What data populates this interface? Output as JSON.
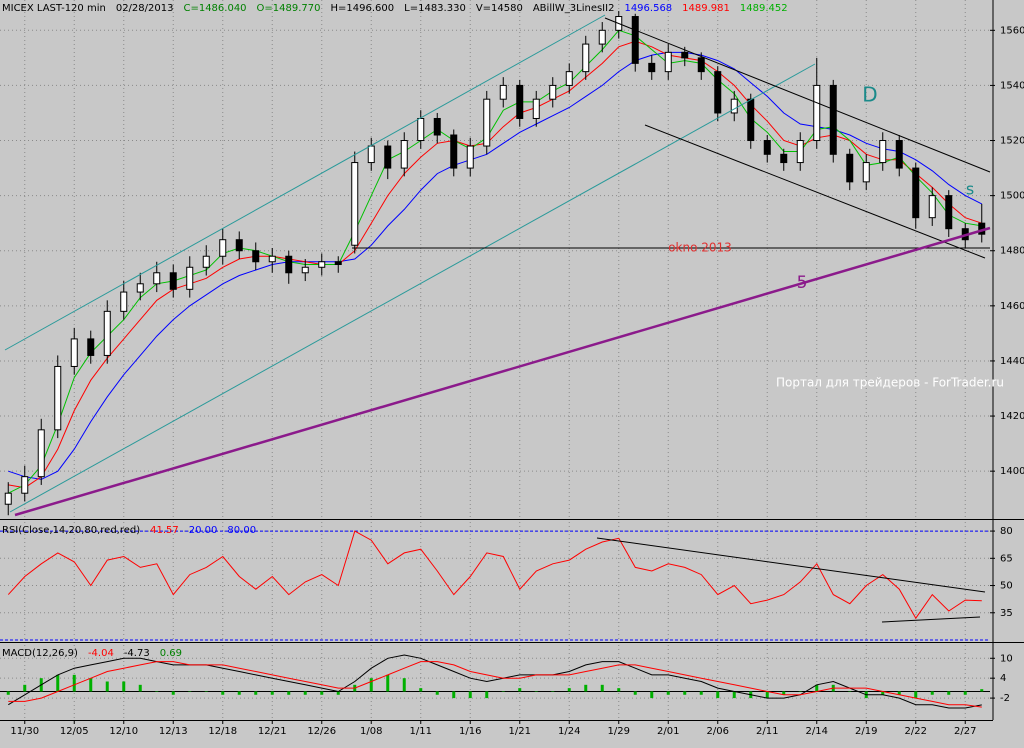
{
  "chart_data": [
    {
      "type": "candlestick",
      "header": [
        {
          "text": "MICEX LAST-120 min",
          "color": "#000000"
        },
        {
          "text": "02/28/2013",
          "color": "#000000"
        },
        {
          "text": "C=1486.040",
          "color": "#008000"
        },
        {
          "text": "O=1489.770",
          "color": "#008000"
        },
        {
          "text": "H=1496.600",
          "color": "#000000"
        },
        {
          "text": "L=1483.330",
          "color": "#000000"
        },
        {
          "text": "V=14580",
          "color": "#000000"
        },
        {
          "text": "ABillW_3LinesII2",
          "color": "#000000"
        },
        {
          "text": "1496.568",
          "color": "#0000ff"
        },
        {
          "text": "1489.981",
          "color": "#ff0000"
        },
        {
          "text": "1489.452",
          "color": "#00b000"
        }
      ],
      "categories": [
        null,
        "11/30",
        null,
        null,
        "12/05",
        null,
        null,
        "12/10",
        null,
        null,
        "12/13",
        null,
        null,
        "12/18",
        null,
        null,
        "12/21",
        null,
        null,
        "12/26",
        null,
        null,
        "1/08",
        null,
        null,
        "1/11",
        null,
        null,
        "1/16",
        null,
        null,
        "1/21",
        null,
        null,
        "1/24",
        null,
        null,
        "1/29",
        null,
        null,
        "2/01",
        null,
        null,
        "2/06",
        null,
        null,
        "2/11",
        null,
        null,
        "2/14",
        null,
        null,
        "2/19",
        null,
        null,
        "2/22",
        null,
        null,
        "2/27",
        null
      ],
      "open": [
        1388,
        1392,
        1398,
        1415,
        1438,
        1448,
        1442,
        1458,
        1465,
        1468,
        1472,
        1466,
        1474,
        1478,
        1484,
        1480,
        1476,
        1478,
        1472,
        1474,
        1476,
        1482,
        1512,
        1518,
        1510,
        1520,
        1528,
        1522,
        1510,
        1518,
        1535,
        1540,
        1528,
        1535,
        1540,
        1545,
        1555,
        1560,
        1565,
        1548,
        1545,
        1552,
        1550,
        1545,
        1530,
        1535,
        1520,
        1515,
        1512,
        1520,
        1540,
        1515,
        1505,
        1512,
        1520,
        1510,
        1492,
        1500,
        1488,
        1490
      ],
      "high": [
        1396,
        1402,
        1419,
        1442,
        1452,
        1451,
        1462,
        1469,
        1472,
        1476,
        1475,
        1478,
        1482,
        1488,
        1487,
        1483,
        1481,
        1480,
        1477,
        1479,
        1478,
        1516,
        1521,
        1520,
        1523,
        1531,
        1530,
        1524,
        1521,
        1538,
        1543,
        1542,
        1538,
        1543,
        1548,
        1558,
        1563,
        1567,
        1566,
        1551,
        1555,
        1554,
        1552,
        1547,
        1538,
        1537,
        1522,
        1517,
        1523,
        1550,
        1542,
        1517,
        1515,
        1523,
        1522,
        1512,
        1503,
        1502,
        1490,
        1497
      ],
      "low": [
        1384,
        1389,
        1395,
        1412,
        1435,
        1439,
        1439,
        1455,
        1462,
        1465,
        1463,
        1463,
        1471,
        1475,
        1477,
        1473,
        1472,
        1468,
        1469,
        1471,
        1472,
        1479,
        1509,
        1506,
        1507,
        1517,
        1519,
        1507,
        1507,
        1515,
        1532,
        1525,
        1525,
        1532,
        1537,
        1542,
        1552,
        1557,
        1545,
        1542,
        1542,
        1547,
        1542,
        1527,
        1527,
        1517,
        1512,
        1509,
        1509,
        1517,
        1512,
        1502,
        1502,
        1509,
        1507,
        1488,
        1489,
        1485,
        1481,
        1483
      ],
      "close": [
        1392,
        1398,
        1415,
        1438,
        1448,
        1442,
        1458,
        1465,
        1468,
        1472,
        1466,
        1474,
        1478,
        1484,
        1480,
        1476,
        1478,
        1472,
        1474,
        1476,
        1475,
        1512,
        1518,
        1510,
        1520,
        1528,
        1522,
        1510,
        1518,
        1535,
        1540,
        1528,
        1535,
        1540,
        1545,
        1555,
        1560,
        1565,
        1548,
        1545,
        1552,
        1550,
        1545,
        1530,
        1535,
        1520,
        1515,
        1512,
        1520,
        1540,
        1515,
        1505,
        1512,
        1520,
        1510,
        1492,
        1500,
        1488,
        1484,
        1486
      ],
      "series": [
        {
          "color": "#0000ff",
          "values": [
            1400,
            1398,
            1397,
            1400,
            1408,
            1418,
            1427,
            1435,
            1442,
            1449,
            1455,
            1460,
            1464,
            1468,
            1471,
            1473,
            1475,
            1476,
            1476,
            1476,
            1476,
            1477,
            1482,
            1489,
            1495,
            1502,
            1508,
            1511,
            1513,
            1515,
            1519,
            1523,
            1526,
            1529,
            1532,
            1536,
            1540,
            1545,
            1549,
            1551,
            1552,
            1552,
            1551,
            1549,
            1546,
            1541,
            1536,
            1530,
            1526,
            1525,
            1524,
            1522,
            1519,
            1517,
            1516,
            1513,
            1509,
            1504,
            1500,
            1497
          ]
        },
        {
          "color": "#ff0000",
          "values": [
            1395,
            1394,
            1398,
            1408,
            1422,
            1433,
            1441,
            1448,
            1455,
            1462,
            1466,
            1468,
            1470,
            1474,
            1477,
            1478,
            1478,
            1477,
            1476,
            1475,
            1475,
            1480,
            1490,
            1500,
            1508,
            1514,
            1519,
            1520,
            1518,
            1519,
            1525,
            1530,
            1532,
            1535,
            1538,
            1543,
            1548,
            1554,
            1556,
            1554,
            1551,
            1550,
            1549,
            1545,
            1540,
            1533,
            1527,
            1520,
            1518,
            1521,
            1522,
            1520,
            1515,
            1513,
            1513,
            1508,
            1503,
            1497,
            1492,
            1490
          ]
        },
        {
          "color": "#00c000",
          "values": [
            1392,
            1395,
            1402,
            1417,
            1434,
            1443,
            1449,
            1455,
            1463,
            1468,
            1469,
            1471,
            1473,
            1479,
            1481,
            1480,
            1478,
            1476,
            1475,
            1475,
            1475,
            1487,
            1500,
            1513,
            1516,
            1520,
            1524,
            1520,
            1517,
            1521,
            1531,
            1534,
            1534,
            1538,
            1541,
            1547,
            1553,
            1560,
            1558,
            1553,
            1548,
            1549,
            1548,
            1542,
            1537,
            1528,
            1523,
            1516,
            1516,
            1524,
            1525,
            1520,
            1511,
            1512,
            1514,
            1507,
            1501,
            1493,
            1490,
            1489
          ]
        }
      ],
      "ylim": [
        1383,
        1571
      ],
      "yticks": [
        1400,
        1420,
        1440,
        1460,
        1480,
        1500,
        1520,
        1540,
        1560
      ],
      "grid": true,
      "annotations": [
        {
          "text": "D",
          "color": "#1a8a8a"
        },
        {
          "text": "s",
          "color": "#1a8a8a"
        },
        {
          "text": "okno 2013",
          "color": "#e03030"
        },
        {
          "text": "5",
          "color": "#8b1a8b"
        },
        {
          "text": "Портал для трейдеров - ForTrader.ru",
          "color": "#ffffff"
        }
      ]
    },
    {
      "type": "line",
      "header": [
        {
          "text": "RSI(Close,14,20,80,red,red)",
          "color": "#000000"
        },
        {
          "text": "41.57",
          "color": "#ff0000"
        },
        {
          "text": "20.00",
          "color": "#0000ff"
        },
        {
          "text": "80.00",
          "color": "#0000ff"
        }
      ],
      "series": [
        {
          "color": "#ff0000",
          "values": [
            45,
            55,
            62,
            68,
            63,
            50,
            64,
            66,
            60,
            62,
            45,
            56,
            60,
            66,
            55,
            48,
            55,
            45,
            52,
            56,
            50,
            80,
            75,
            62,
            68,
            70,
            58,
            45,
            55,
            68,
            66,
            48,
            58,
            62,
            64,
            70,
            74,
            76,
            60,
            58,
            62,
            60,
            56,
            45,
            50,
            40,
            42,
            45,
            52,
            62,
            45,
            40,
            50,
            56,
            48,
            32,
            45,
            36,
            42,
            41.57
          ]
        }
      ],
      "levels": [
        20,
        80
      ],
      "level_color": "#0000ff",
      "ylim": [
        20,
        85
      ],
      "yticks": [
        35,
        50,
        65,
        80
      ],
      "grid": true
    },
    {
      "type": "line",
      "header": [
        {
          "text": "MACD(12,26,9)",
          "color": "#000000"
        },
        {
          "text": "-4.04",
          "color": "#ff0000"
        },
        {
          "text": "-4.73",
          "color": "#000000"
        },
        {
          "text": "0.69",
          "color": "#008000"
        }
      ],
      "series": [
        {
          "color": "#00b000",
          "style": "histogram",
          "values": [
            -1,
            2,
            4,
            5,
            5,
            4,
            3,
            3,
            2,
            0,
            -1,
            0,
            0,
            -1,
            -1,
            -1,
            -1,
            -1,
            -1,
            -1,
            -1,
            2,
            4,
            5,
            4,
            1,
            -1,
            -2,
            -2,
            -2,
            0,
            1,
            0,
            0,
            1,
            2,
            2,
            1,
            -1,
            -2,
            -1,
            -1,
            -1,
            -2,
            -2,
            -2,
            -2,
            -1,
            0,
            2,
            2,
            0,
            -2,
            -1,
            -1,
            -2,
            -1,
            -1,
            -1,
            0.69
          ]
        },
        {
          "color": "#000000",
          "values": [
            -4,
            -1,
            2,
            5,
            7,
            8,
            9,
            10,
            10,
            9,
            8,
            8,
            8,
            7,
            6,
            5,
            4,
            3,
            2,
            1,
            0,
            3,
            7,
            10,
            11,
            10,
            8,
            6,
            4,
            3,
            4,
            5,
            5,
            5,
            6,
            8,
            9,
            9,
            7,
            5,
            5,
            4,
            3,
            1,
            0,
            -1,
            -2,
            -2,
            -1,
            2,
            3,
            1,
            -1,
            -1,
            -2,
            -4,
            -4,
            -5,
            -5,
            -4.04
          ]
        },
        {
          "color": "#ff0000",
          "values": [
            -3,
            -3,
            -2,
            0,
            2,
            4,
            6,
            7,
            8,
            9,
            9,
            8,
            8,
            8,
            7,
            6,
            5,
            4,
            3,
            2,
            1,
            1,
            3,
            5,
            7,
            9,
            9,
            8,
            6,
            5,
            4,
            4,
            5,
            5,
            5,
            6,
            7,
            8,
            8,
            7,
            6,
            5,
            4,
            3,
            2,
            1,
            0,
            -1,
            -1,
            0,
            1,
            1,
            1,
            0,
            -1,
            -2,
            -3,
            -4,
            -4,
            -4.73
          ]
        }
      ],
      "levels": [
        0
      ],
      "level_color": "#000000",
      "ylim": [
        -8,
        14
      ],
      "yticks": [
        10,
        4,
        -2
      ],
      "grid": true
    }
  ]
}
